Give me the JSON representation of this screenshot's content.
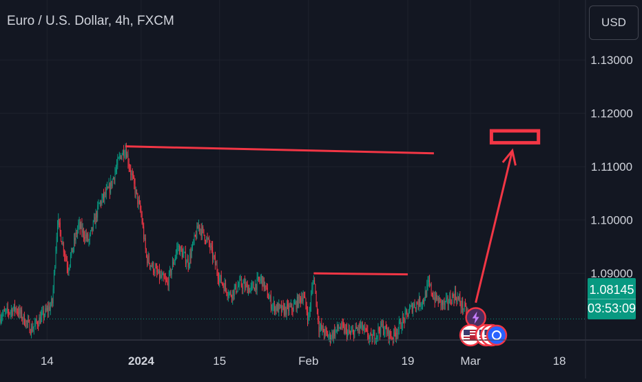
{
  "header": {
    "title": "Euro / U.S. Dollar, 4h, FXCM",
    "currency_button": "USD"
  },
  "last_price": {
    "value": "1.08145",
    "countdown": "03:53:09"
  },
  "colors": {
    "background": "#131722",
    "up": "#089981",
    "down": "#f23645",
    "annotation": "#f23645",
    "text": "#d1d4dc",
    "grid": "#1e222d"
  },
  "chart_data": {
    "type": "candlestick",
    "title": "Euro / U.S. Dollar, 4h, FXCM",
    "ylim": [
      1.0775,
      1.1335
    ],
    "y_ticks": [
      "1.13000",
      "1.12000",
      "1.11000",
      "1.10000",
      "1.09000"
    ],
    "x_ticks": [
      {
        "label": "14",
        "day": 8
      },
      {
        "label": "2024",
        "day": 26
      },
      {
        "label": "15",
        "day": 41
      },
      {
        "label": "Feb",
        "day": 58
      },
      {
        "label": "19",
        "day": 77
      },
      {
        "label": "Mar",
        "day": 89
      },
      {
        "label": "18",
        "day": 106
      }
    ],
    "xlim": [
      -1,
      111
    ],
    "last_price": 1.08145,
    "path": [
      [
        -1,
        1.082
      ],
      [
        2,
        1.0835
      ],
      [
        5,
        1.0795
      ],
      [
        8,
        1.083
      ],
      [
        9,
        1.0845
      ],
      [
        10,
        1.1
      ],
      [
        12,
        1.091
      ],
      [
        14,
        1.099
      ],
      [
        16,
        1.096
      ],
      [
        18,
        1.103
      ],
      [
        20,
        1.106
      ],
      [
        22,
        1.112
      ],
      [
        23,
        1.1135
      ],
      [
        24,
        1.109
      ],
      [
        25,
        1.105
      ],
      [
        26,
        1.101
      ],
      [
        27,
        1.093
      ],
      [
        29,
        1.09
      ],
      [
        31,
        1.088
      ],
      [
        33,
        1.095
      ],
      [
        35,
        1.092
      ],
      [
        37,
        1.099
      ],
      [
        39,
        1.0955
      ],
      [
        41,
        1.089
      ],
      [
        43,
        1.086
      ],
      [
        45,
        1.088
      ],
      [
        47,
        1.087
      ],
      [
        49,
        1.089
      ],
      [
        51,
        1.084
      ],
      [
        53,
        1.083
      ],
      [
        55,
        1.0835
      ],
      [
        57,
        1.086
      ],
      [
        58,
        1.0815
      ],
      [
        59,
        1.0895
      ],
      [
        60,
        1.08
      ],
      [
        62,
        1.078
      ],
      [
        64,
        1.08
      ],
      [
        66,
        1.0785
      ],
      [
        68,
        1.08
      ],
      [
        70,
        1.0775
      ],
      [
        72,
        1.08
      ],
      [
        74,
        1.078
      ],
      [
        76,
        1.081
      ],
      [
        78,
        1.084
      ],
      [
        80,
        1.085
      ],
      [
        81,
        1.088
      ],
      [
        82,
        1.0855
      ],
      [
        84,
        1.084
      ],
      [
        86,
        1.086
      ],
      [
        88,
        1.083
      ],
      [
        89,
        1.0815
      ]
    ],
    "annotations": {
      "resistance_line": {
        "start": [
          23,
          1.1138
        ],
        "end": [
          82,
          1.1125
        ]
      },
      "local_high_line": {
        "start": [
          59,
          1.09
        ],
        "end": [
          77,
          1.0898
        ]
      },
      "target_zone": {
        "x": [
          93,
          102
        ],
        "y": [
          1.1162,
          1.115
        ]
      },
      "arrow": {
        "start": [
          90,
          1.0845
        ],
        "end": [
          97,
          1.113
        ]
      }
    },
    "markers": [
      {
        "type": "lightning",
        "day": 90,
        "value": 1.0817
      },
      {
        "type": "us-flag",
        "day": 89,
        "value": 1.0784
      },
      {
        "type": "us-flag",
        "day": 92,
        "value": 1.0784
      },
      {
        "type": "us-flag",
        "day": 93,
        "value": 1.0784
      },
      {
        "type": "event",
        "day": 94,
        "value": 1.0784
      }
    ]
  }
}
